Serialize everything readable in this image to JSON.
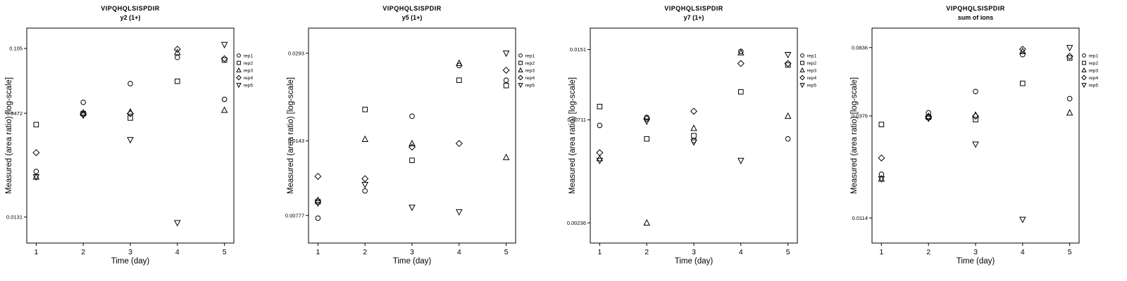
{
  "page": {
    "background": "#ffffff",
    "foreground": "#000000",
    "marker_legend": {
      "rep1": "open-circle",
      "rep2": "open-square",
      "rep3": "open-triangle-up",
      "rep4": "open-diamond",
      "rep5": "open-triangle-down"
    }
  },
  "chart_data": [
    {
      "type": "scatter",
      "title": "VIPQHQLSISPDIR",
      "subtitle": "y2 (1+)",
      "xlabel": "Time (day)",
      "ylabel": "Measured (area ratio) [log-scale]",
      "y_scale": "log",
      "legend_position": "right",
      "grid": false,
      "xlim": [
        0.8,
        5.2
      ],
      "ylim": [
        0.0095,
        0.135
      ],
      "x_ticks": [
        1,
        2,
        3,
        4,
        5
      ],
      "y_ticks": [
        "0.0131",
        "0.0472",
        "0.105"
      ],
      "y_tick_values": [
        0.0131,
        0.0472,
        0.105
      ],
      "x": [
        1,
        2,
        3,
        4,
        5
      ],
      "series": [
        {
          "name": "rep1",
          "marker": "circle",
          "values": [
            0.023,
            0.054,
            0.068,
            0.094,
            0.056
          ]
        },
        {
          "name": "rep2",
          "marker": "square",
          "values": [
            0.041,
            0.047,
            0.0445,
            0.07,
            0.091
          ]
        },
        {
          "name": "rep3",
          "marker": "triangle-up",
          "values": [
            0.0215,
            0.0475,
            0.048,
            0.1,
            0.049
          ]
        },
        {
          "name": "rep4",
          "marker": "diamond",
          "values": [
            0.029,
            0.0465,
            0.047,
            0.104,
            0.0925
          ]
        },
        {
          "name": "rep5",
          "marker": "triangle-down",
          "values": [
            0.0215,
            0.046,
            0.034,
            0.0122,
            0.11
          ]
        }
      ]
    },
    {
      "type": "scatter",
      "title": "VIPQHQLSISPDIR",
      "subtitle": "y5 (1+)",
      "xlabel": "Time (day)",
      "ylabel": "Measured (area ratio) [log-scale]",
      "y_scale": "log",
      "legend_position": "right",
      "grid": false,
      "xlim": [
        0.8,
        5.2
      ],
      "ylim": [
        0.0062,
        0.036
      ],
      "x_ticks": [
        1,
        2,
        3,
        4,
        5
      ],
      "y_ticks": [
        "0.00777",
        "0.0143",
        "0.0293"
      ],
      "y_tick_values": [
        0.00777,
        0.0143,
        0.0293
      ],
      "x": [
        1,
        2,
        3,
        4,
        5
      ],
      "series": [
        {
          "name": "rep1",
          "marker": "circle",
          "values": [
            0.0076,
            0.0095,
            0.0175,
            0.0265,
            0.0235
          ]
        },
        {
          "name": "rep2",
          "marker": "square",
          "values": [
            0.0087,
            0.0185,
            0.0122,
            0.0235,
            0.0225
          ]
        },
        {
          "name": "rep3",
          "marker": "triangle-up",
          "values": [
            0.0088,
            0.0145,
            0.014,
            0.027,
            0.0125
          ]
        },
        {
          "name": "rep4",
          "marker": "diamond",
          "values": [
            0.0107,
            0.0105,
            0.0136,
            0.014,
            0.0255
          ]
        },
        {
          "name": "rep5",
          "marker": "triangle-down",
          "values": [
            0.0086,
            0.01,
            0.0083,
            0.008,
            0.0293
          ]
        }
      ]
    },
    {
      "type": "scatter",
      "title": "VIPQHQLSISPDIR",
      "subtitle": "y7 (1+)",
      "xlabel": "Time (day)",
      "ylabel": "Measured (area ratio) [log-scale]",
      "y_scale": "log",
      "legend_position": "right",
      "grid": false,
      "xlim": [
        0.8,
        5.2
      ],
      "ylim": [
        0.0019,
        0.019
      ],
      "x_ticks": [
        1,
        2,
        3,
        4,
        5
      ],
      "y_ticks": [
        "0.00236",
        "0.00711",
        "0.0151"
      ],
      "y_tick_values": [
        0.00236,
        0.00711,
        0.0151
      ],
      "x": [
        1,
        2,
        3,
        4,
        5
      ],
      "series": [
        {
          "name": "rep1",
          "marker": "circle",
          "values": [
            0.0067,
            0.0073,
            0.0057,
            0.0148,
            0.0058
          ]
        },
        {
          "name": "rep2",
          "marker": "square",
          "values": [
            0.0082,
            0.0058,
            0.006,
            0.0096,
            0.0128
          ]
        },
        {
          "name": "rep3",
          "marker": "triangle-up",
          "values": [
            0.0047,
            0.00236,
            0.0065,
            0.0146,
            0.0074
          ]
        },
        {
          "name": "rep4",
          "marker": "diamond",
          "values": [
            0.005,
            0.0072,
            0.0078,
            0.013,
            0.013
          ]
        },
        {
          "name": "rep5",
          "marker": "triangle-down",
          "values": [
            0.0046,
            0.007,
            0.0056,
            0.0046,
            0.0143
          ]
        }
      ]
    },
    {
      "type": "scatter",
      "title": "VIPQHQLSISPDIR",
      "subtitle": "sum of ions",
      "xlabel": "Time (day)",
      "ylabel": "Measured (area ratio) [log-scale]",
      "y_scale": "log",
      "legend_position": "right",
      "grid": false,
      "xlim": [
        0.8,
        5.2
      ],
      "ylim": [
        0.0085,
        0.105
      ],
      "x_ticks": [
        1,
        2,
        3,
        4,
        5
      ],
      "y_ticks": [
        "0.0114",
        "0.0376",
        "0.0836"
      ],
      "y_tick_values": [
        0.0114,
        0.0376,
        0.0836
      ],
      "x": [
        1,
        2,
        3,
        4,
        5
      ],
      "series": [
        {
          "name": "rep1",
          "marker": "circle",
          "values": [
            0.019,
            0.039,
            0.05,
            0.077,
            0.046
          ]
        },
        {
          "name": "rep2",
          "square_note": "",
          "marker": "square",
          "values": [
            0.034,
            0.037,
            0.036,
            0.055,
            0.074
          ]
        },
        {
          "name": "rep3",
          "marker": "triangle-up",
          "values": [
            0.018,
            0.0375,
            0.038,
            0.08,
            0.039
          ]
        },
        {
          "name": "rep4",
          "marker": "diamond",
          "values": [
            0.023,
            0.037,
            0.0375,
            0.082,
            0.0755
          ]
        },
        {
          "name": "rep5",
          "marker": "triangle-down",
          "values": [
            0.018,
            0.0365,
            0.027,
            0.0112,
            0.0835
          ]
        }
      ]
    }
  ]
}
